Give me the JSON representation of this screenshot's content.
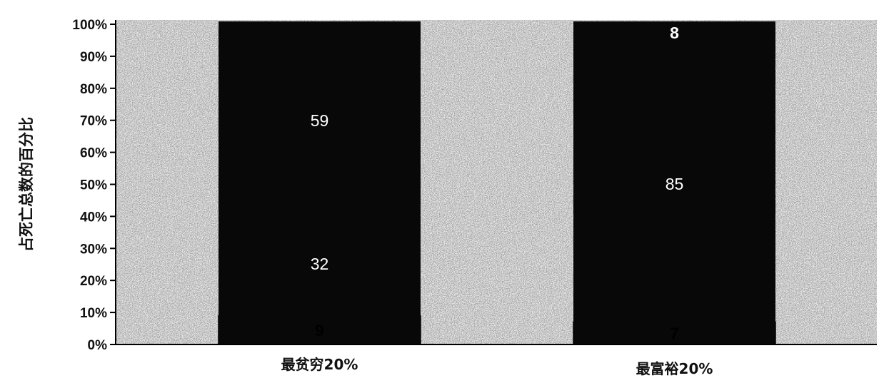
{
  "chart_data": {
    "type": "bar",
    "stacked": true,
    "percent_stacked": true,
    "title": "",
    "xlabel": "",
    "ylabel": "占死亡总数的百分比",
    "ylim": [
      0,
      100
    ],
    "yticks": [
      "0%",
      "10%",
      "20%",
      "30%",
      "40%",
      "50%",
      "60%",
      "70%",
      "80%",
      "90%",
      "100%"
    ],
    "categories": [
      "最贫穷20%",
      "最富裕20%"
    ],
    "series": [
      {
        "values": [
          9,
          7
        ],
        "color": "#ffffff",
        "label_color": "#000000"
      },
      {
        "values": [
          32,
          85
        ],
        "color": "#050505",
        "label_color": "#ffffff"
      },
      {
        "values": [
          59,
          8
        ],
        "color": "#080808",
        "label_color": "#ffffff"
      }
    ],
    "segment_labels": [
      [
        "9",
        "32",
        "59"
      ],
      [
        "7",
        "85",
        "8"
      ]
    ],
    "background_texture": "gray-noise",
    "grid": false,
    "legend": "none"
  }
}
